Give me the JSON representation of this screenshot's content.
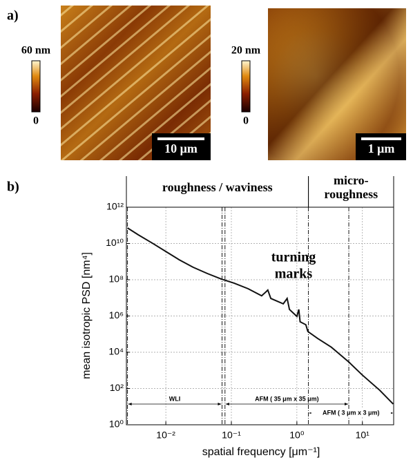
{
  "panel_labels": [
    "a)",
    "b)"
  ],
  "images": [
    {
      "colorbar_max": "60 nm",
      "colorbar_min": "0",
      "scale_bar": "10 μm"
    },
    {
      "colorbar_max": "20 nm",
      "colorbar_min": "0",
      "scale_bar": "1 μm"
    }
  ],
  "chart_data": {
    "type": "line",
    "xlabel": "spatial frequency [μm⁻¹]",
    "ylabel": "mean isotropic PSD [nm⁴]",
    "xscale": "log",
    "yscale": "log",
    "xlim": [
      0.0025,
      30
    ],
    "ylim": [
      1,
      1000000000000.0
    ],
    "xticks": [
      {
        "value": 0.01,
        "label": "10⁻²"
      },
      {
        "value": 0.1,
        "label": "10⁻¹"
      },
      {
        "value": 1,
        "label": "10⁰"
      },
      {
        "value": 10,
        "label": "10¹"
      }
    ],
    "yticks": [
      {
        "value": 1,
        "label": "10⁰"
      },
      {
        "value": 100,
        "label": "10²"
      },
      {
        "value": 10000,
        "label": "10⁴"
      },
      {
        "value": 1000000,
        "label": "10⁶"
      },
      {
        "value": 100000000,
        "label": "10⁸"
      },
      {
        "value": 10000000000,
        "label": "10¹⁰"
      },
      {
        "value": 1000000000000,
        "label": "10¹²"
      }
    ],
    "grid": true,
    "x": [
      0.0026,
      0.0038,
      0.0062,
      0.01,
      0.016,
      0.026,
      0.043,
      0.07,
      0.11,
      0.18,
      0.29,
      0.34,
      0.36,
      0.4,
      0.62,
      0.71,
      0.77,
      1.0,
      1.07,
      1.12,
      1.37,
      1.47,
      2.07,
      3.36,
      6.2,
      10,
      18.4,
      29.5
    ],
    "series": [
      {
        "color": "#111111",
        "values": [
          72000000000.0,
          30000000000.0,
          10500000000.0,
          3600000000.0,
          1260000000.0,
          490000000.0,
          220000000.0,
          110000000.0,
          65000000.0,
          32000000.0,
          13000000.0,
          22000000.0,
          27000000.0,
          9300000.0,
          4700000.0,
          9300000.0,
          2300000.0,
          950000.0,
          2300000.0,
          480000.0,
          330000.0,
          140000.0,
          58000.0,
          19000.0,
          2900,
          550,
          80,
          14
        ]
      }
    ],
    "regions": [
      {
        "label": [
          "roughness / waviness"
        ],
        "x": [
          0.0025,
          1.5
        ]
      },
      {
        "label": [
          "micro-",
          "roughness"
        ],
        "x": [
          1.5,
          30
        ]
      }
    ],
    "ranges": [
      {
        "label": "WLI",
        "x": [
          0.0026,
          0.072
        ]
      },
      {
        "label": "AFM ( 35 μm x 35 μm)",
        "x": [
          0.08,
          6.2
        ]
      },
      {
        "label": "AFM ( 3 μm x 3 μm)",
        "x": [
          1.5,
          30
        ]
      }
    ],
    "annotation": [
      "turning",
      "marks"
    ]
  }
}
